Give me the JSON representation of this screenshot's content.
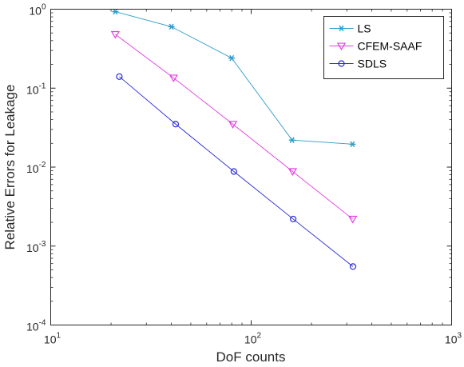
{
  "chart_data": {
    "type": "line",
    "xlabel": "DoF counts",
    "ylabel": "Relative Errors for Leakage",
    "x_scale": "log",
    "y_scale": "log",
    "xlim": [
      10,
      1000
    ],
    "ylim": [
      0.0001,
      1
    ],
    "x_ticks": [
      {
        "value": 10,
        "base": "10",
        "exp": "1"
      },
      {
        "value": 100,
        "base": "10",
        "exp": "2"
      },
      {
        "value": 1000,
        "base": "10",
        "exp": "3"
      }
    ],
    "y_ticks": [
      {
        "value": 0.0001,
        "base": "10",
        "exp": "-4"
      },
      {
        "value": 0.001,
        "base": "10",
        "exp": "-3"
      },
      {
        "value": 0.01,
        "base": "10",
        "exp": "-2"
      },
      {
        "value": 0.1,
        "base": "10",
        "exp": "-1"
      },
      {
        "value": 1,
        "base": "10",
        "exp": "0"
      }
    ],
    "grid": false,
    "legend_position": "top-right",
    "series": [
      {
        "name": "LS",
        "color": "#2e9bc9",
        "marker": "asterisk",
        "points": [
          [
            21,
            0.93
          ],
          [
            40,
            0.6
          ],
          [
            80,
            0.24
          ],
          [
            160,
            0.022
          ],
          [
            320,
            0.0195
          ]
        ]
      },
      {
        "name": "CFEM-SAAF",
        "color": "#e23ee2",
        "marker": "triangle-down",
        "points": [
          [
            21,
            0.48
          ],
          [
            41,
            0.135
          ],
          [
            81,
            0.035
          ],
          [
            161,
            0.0088
          ],
          [
            321,
            0.0022
          ]
        ]
      },
      {
        "name": "SDLS",
        "color": "#2a2ad8",
        "marker": "circle",
        "points": [
          [
            22,
            0.14
          ],
          [
            42,
            0.035
          ],
          [
            82,
            0.0088
          ],
          [
            162,
            0.0022
          ],
          [
            322,
            0.00055
          ]
        ]
      }
    ]
  }
}
